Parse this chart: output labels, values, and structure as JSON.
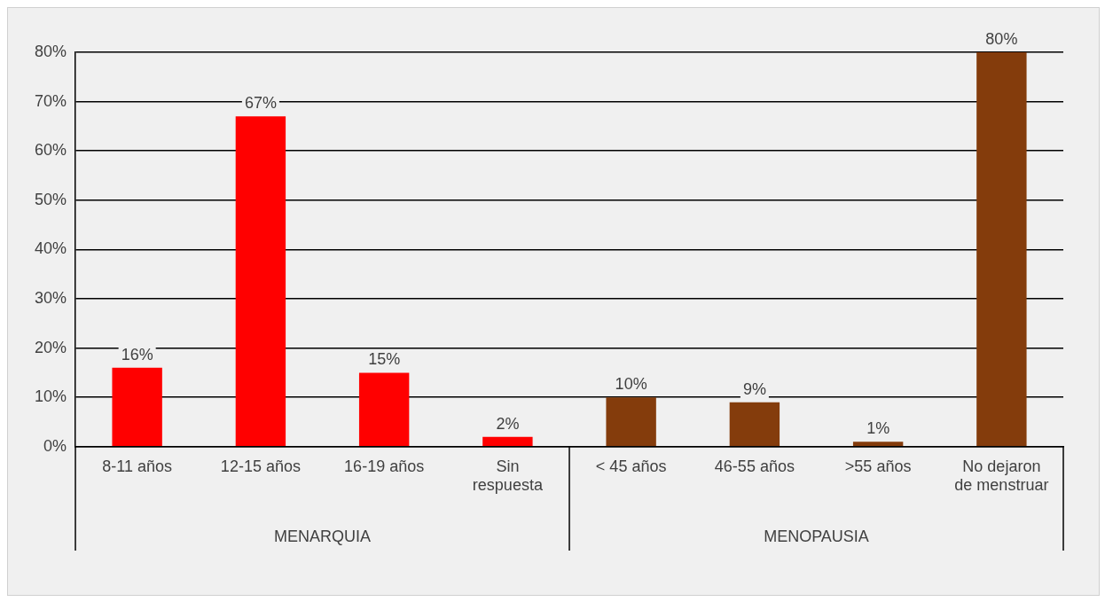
{
  "chart_data": {
    "type": "bar",
    "categories": [
      "8-11 años",
      "12-15 años",
      "16-19 años",
      "Sin respuesta",
      "< 45 años",
      "46-55 años",
      ">55 años",
      "No dejaron de menstruar"
    ],
    "values": [
      16,
      67,
      15,
      2,
      10,
      9,
      1,
      80
    ],
    "colors": [
      "#ff0000",
      "#ff0000",
      "#ff0000",
      "#ff0000",
      "#843c0c",
      "#843c0c",
      "#843c0c",
      "#843c0c"
    ],
    "ylim": [
      0,
      80
    ],
    "yticks": [
      {
        "value": 0,
        "label": "0%"
      },
      {
        "value": 10,
        "label": "10%"
      },
      {
        "value": 20,
        "label": "20%"
      },
      {
        "value": 30,
        "label": "30%"
      },
      {
        "value": 40,
        "label": "40%"
      },
      {
        "value": 50,
        "label": "50%"
      },
      {
        "value": 60,
        "label": "60%"
      },
      {
        "value": 70,
        "label": "70%"
      },
      {
        "value": 80,
        "label": "80%"
      }
    ],
    "value_labels": [
      "16%",
      "67%",
      "15%",
      "2%",
      "10%",
      "9%",
      "1%",
      "80%"
    ],
    "annotations": [
      "MENARQUIA",
      "MENOPAUSIA"
    ],
    "grid": "y",
    "legend": false
  }
}
